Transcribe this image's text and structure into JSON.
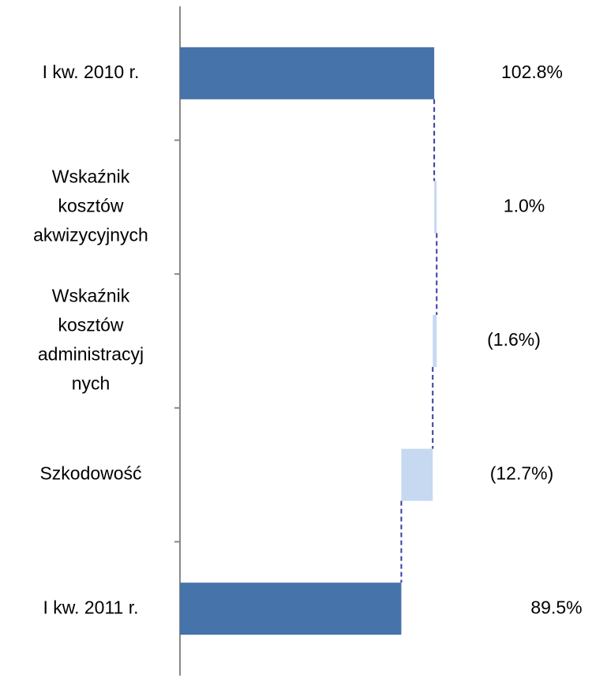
{
  "chart_data": {
    "type": "waterfall",
    "categories": [
      [
        "I kw. 2010 r."
      ],
      [
        "Wskaźnik",
        "kosztów",
        "akwizycyjnych"
      ],
      [
        "Wskaźnik",
        "kosztów",
        "administracyj",
        "nych"
      ],
      [
        "Szkodowość"
      ],
      [
        "I kw. 2011 r."
      ]
    ],
    "values": [
      102.8,
      1.0,
      -1.6,
      -12.7,
      89.5
    ],
    "value_labels": [
      "102.8%",
      "1.0%",
      "(1.6%)",
      "(12.7%)",
      "89.5%"
    ],
    "totals": [
      true,
      false,
      false,
      false,
      true
    ],
    "total_color": "#4673a9",
    "delta_color": "#c6d9f1",
    "connector_color": "#3a3aaa",
    "xlim": [
      0,
      120
    ]
  }
}
